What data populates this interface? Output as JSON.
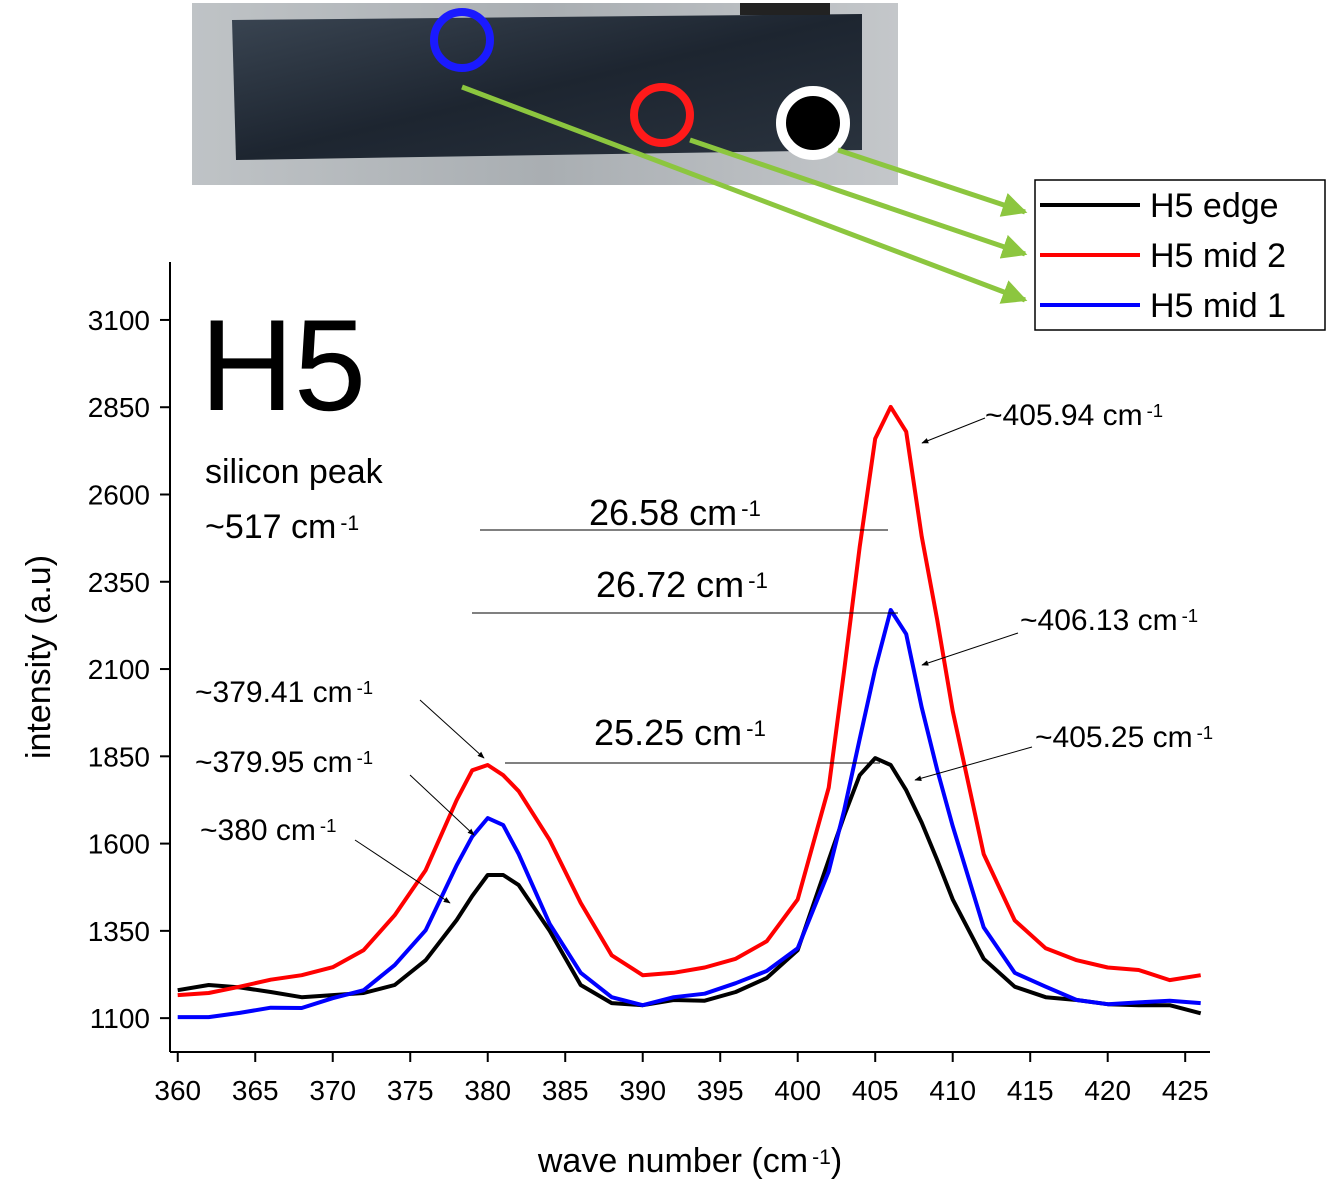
{
  "chart_data": {
    "type": "line",
    "title": "H5",
    "subtitle": [
      "silicon peak",
      {
        "text": "~517 cm",
        "sup": "-1"
      }
    ],
    "xlabel": {
      "text": "wave number (cm",
      "sup": "-1",
      "tail": ")"
    },
    "ylabel": "intensity (a.u)",
    "x": [
      360,
      362,
      364,
      366,
      368,
      370,
      372,
      374,
      376,
      378,
      379,
      380,
      381,
      382,
      384,
      386,
      388,
      390,
      392,
      394,
      396,
      398,
      400,
      402,
      403,
      404,
      405,
      406,
      407,
      408,
      409,
      410,
      412,
      414,
      416,
      418,
      420,
      422,
      424,
      426
    ],
    "series": [
      {
        "name": "H5 edge",
        "color": "#000000",
        "values": [
          1180,
          1195,
          1188,
          1175,
          1160,
          1166,
          1172,
          1195,
          1266,
          1381,
          1450,
          1510,
          1510,
          1481,
          1350,
          1195,
          1143,
          1137,
          1152,
          1150,
          1175,
          1215,
          1295,
          1553,
          1680,
          1796,
          1845,
          1825,
          1753,
          1660,
          1553,
          1440,
          1270,
          1190,
          1160,
          1152,
          1140,
          1137,
          1137,
          1114
        ]
      },
      {
        "name": "H5 mid 2",
        "color": "#ff0000",
        "values": [
          1166,
          1172,
          1190,
          1210,
          1223,
          1246,
          1295,
          1395,
          1524,
          1725,
          1810,
          1825,
          1796,
          1750,
          1610,
          1430,
          1280,
          1223,
          1230,
          1245,
          1270,
          1320,
          1440,
          1760,
          2097,
          2450,
          2760,
          2851,
          2780,
          2480,
          2241,
          1980,
          1570,
          1380,
          1300,
          1266,
          1245,
          1238,
          1209,
          1223
        ]
      },
      {
        "name": "H5 mid 1",
        "color": "#0000ff",
        "values": [
          1103,
          1103,
          1115,
          1130,
          1129,
          1157,
          1180,
          1252,
          1352,
          1538,
          1620,
          1673,
          1653,
          1570,
          1370,
          1230,
          1160,
          1137,
          1160,
          1170,
          1200,
          1235,
          1300,
          1520,
          1696,
          1900,
          2100,
          2269,
          2200,
          1990,
          1811,
          1650,
          1360,
          1230,
          1190,
          1152,
          1140,
          1145,
          1150,
          1143
        ]
      }
    ],
    "xlim": [
      359.5,
      426.6
    ],
    "xticks": [
      360,
      365,
      370,
      375,
      380,
      385,
      390,
      395,
      400,
      405,
      410,
      415,
      420,
      425
    ],
    "ylim": [
      1003,
      3266
    ],
    "yticks": [
      1100,
      1350,
      1600,
      1850,
      2100,
      2350,
      2600,
      2850,
      3100
    ],
    "legend": "top-right",
    "annotations": [
      {
        "text": "~405.94 cm",
        "sup": "-1"
      },
      {
        "text": "~406.13 cm",
        "sup": "-1"
      },
      {
        "text": "~405.25 cm",
        "sup": "-1"
      },
      {
        "text": "~379.41 cm",
        "sup": "-1"
      },
      {
        "text": "~379.95 cm",
        "sup": "-1"
      },
      {
        "text": "~380 cm",
        "sup": "-1"
      },
      {
        "text": "26.58 cm",
        "sup": "-1"
      },
      {
        "text": "26.72 cm",
        "sup": "-1"
      },
      {
        "text": "25.25 cm",
        "sup": "-1"
      }
    ]
  }
}
